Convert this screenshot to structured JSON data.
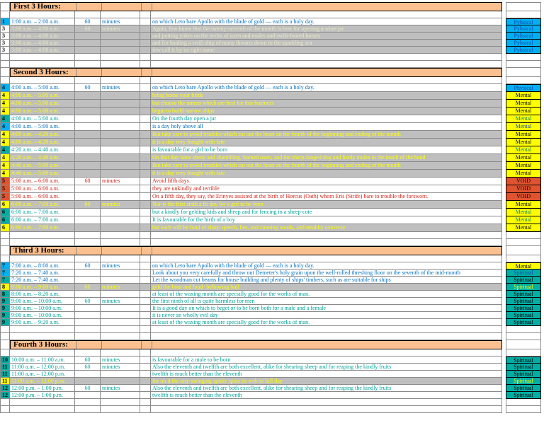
{
  "colors": {
    "section_header_band": "#FAC090",
    "grey_row": "#BFBFBF",
    "cyan_fill": "#00B0F0",
    "yellow_fill": "#FFFF00",
    "teal_fill": "#00AEA4",
    "void_red_fill": "#E0532F",
    "blue_text": "#0070C0",
    "teal_text": "#00A29A",
    "red_text": "#D02418",
    "yellow_text": "#FFFF00",
    "pale_text": "#E9E9C4"
  },
  "sections": [
    {
      "title": "First 3 Hours:",
      "rows": [
        {
          "num": "1",
          "num_bg": "cyan",
          "time": "1:00 a.m. – 2:00 a.m.",
          "dur": "60",
          "unit": "minutes",
          "text": "on which Leto bare Apollo with the blade of gold — each is a holy day.",
          "fg": "blue",
          "bg": "white",
          "label": "Pyhsical",
          "label_bg": "cyan",
          "label_fg": "blue"
        },
        {
          "num": "3",
          "num_bg": "none",
          "time": "3:00 a.m. – 4:00 a.m.",
          "dur": "60",
          "unit": "minutes",
          "text": "Again, few know that the twenty-seventh of the month is best for opening a wine-jar",
          "fg": "pale",
          "bg": "grey",
          "label": "Pyhsical",
          "label_bg": "cyan",
          "label_fg": "blue"
        },
        {
          "num": "3",
          "num_bg": "none",
          "time": "3:00 a.m. – 4:00 a.m.",
          "text": "and putting yokes on the necks of oxen and mules and swift-footed horses",
          "fg": "pale",
          "bg": "grey",
          "label": "Pyhsical",
          "label_bg": "cyan",
          "label_fg": "blue"
        },
        {
          "num": "3",
          "num_bg": "none",
          "time": "3:00 a.m. – 4:00 a.m.",
          "text": "and for hauling a swift ship of many thwarts down to the sparkling sea",
          "fg": "pale",
          "bg": "grey",
          "label": "Pyhsical",
          "label_bg": "cyan",
          "label_fg": "blue"
        },
        {
          "num": "3",
          "num_bg": "none",
          "time": "3:00 a.m. – 4:00 a.m.",
          "text": "few call it by its right name",
          "fg": "pale",
          "bg": "grey",
          "label": "Pyhsical",
          "label_bg": "cyan",
          "label_fg": "blue"
        }
      ]
    },
    {
      "title": "Second 3 Hours:",
      "rows": [
        {
          "num": "4",
          "num_bg": "cyan",
          "time": "4:00 a.m. – 5:00 a.m.",
          "dur": "60",
          "unit": "minutes",
          "text": "on which Leto bare Apollo with the blade of gold — each is a holy day.",
          "fg": "blue",
          "bg": "white",
          "label": "Physical",
          "label_bg": "cyan",
          "label_fg": "blue"
        },
        {
          "num": "4",
          "num_bg": "yellow",
          "time": "4:00 a.m. – 5:00 a.m.",
          "text": "bring home your bride",
          "fg": "yellow",
          "bg": "grey",
          "label": "Mental",
          "label_bg": "yellow",
          "label_fg": "black"
        },
        {
          "num": "4",
          "num_bg": "yellow",
          "time": "4:00 a.m. – 5:00 a.m.",
          "text": "but choose the omens which are best for this business",
          "fg": "yellow",
          "bg": "grey",
          "label": "Mental",
          "label_bg": "yellow",
          "label_fg": "black"
        },
        {
          "num": "4",
          "num_bg": "yellow",
          "time": "4:00 a.m. – 5:00 a.m.",
          "text": "begin to build narrow ships",
          "fg": "yellow",
          "bg": "grey",
          "label": "Mental",
          "label_bg": "yellow",
          "label_fg": "black"
        },
        {
          "num": "4",
          "num_bg": "teal",
          "time": "4:00 a.m. – 5:00 a.m.",
          "text": "On the fourth day open a jar",
          "fg": "teal",
          "bg": "white",
          "label": "Mental",
          "label_bg": "yellow",
          "label_fg": "teal"
        },
        {
          "num": "4",
          "num_bg": "cyan",
          "time": "4:00 a.m. – 5:00 a.m.",
          "text": "is a day holy above all",
          "fg": "blue",
          "bg": "white",
          "label": "Mental",
          "label_bg": "yellow",
          "label_fg": "blue"
        },
        {
          "num": "4",
          "num_bg": "yellow",
          "time": "4:00 a.m. – 4:20 a.m.",
          "text": "But take care to avoid troubles which eat out the heart on the fourth of the beginning and ending of the month",
          "fg": "yellow",
          "bg": "grey",
          "label": "Mental",
          "label_bg": "yellow",
          "label_fg": "black"
        },
        {
          "num": "4",
          "num_bg": "yellow",
          "time": "4:00 a.m. – 4:20 a.m.",
          "text": "it is a day very fraught with fate",
          "fg": "yellow",
          "bg": "grey",
          "label": "Mental",
          "label_bg": "yellow",
          "label_fg": "black"
        },
        {
          "num": "4",
          "num_bg": "teal",
          "time": "4:20 a.m. – 4:40 a.m.",
          "text": "is favourable for a girl to be born",
          "fg": "teal",
          "bg": "white",
          "label": "Mental",
          "label_bg": "yellow",
          "label_fg": "teal"
        },
        {
          "num": "4",
          "num_bg": "yellow",
          "time": "4:20 a.m. – 4:40 a.m.",
          "text": "On that day tame sheep and shambling, horned oxen, and the sharp-fanged dog and hardy mules to the touch of the hand",
          "fg": "yellow",
          "bg": "grey",
          "label": "Mental",
          "label_bg": "yellow",
          "label_fg": "black"
        },
        {
          "num": "4",
          "num_bg": "yellow",
          "time": "4:40 a.m. – 5:00 a.m.",
          "text": "But take care to avoid troubles which eat out the heart on the fourth of the beginning and ending of the month",
          "fg": "yellow",
          "bg": "grey",
          "label": "Mental",
          "label_bg": "yellow",
          "label_fg": "black"
        },
        {
          "num": "4",
          "num_bg": "yellow",
          "time": "4:40 a.m. – 5:00 a.m.",
          "text": "it is a day very fraught with fate",
          "fg": "yellow",
          "bg": "grey",
          "label": "Mental",
          "label_bg": "yellow",
          "label_fg": "black"
        },
        {
          "num": "5",
          "num_bg": "red",
          "time": "5:00 a.m. – 6:00 a.m.",
          "dur": "60",
          "unit": "minutes",
          "text": "Avoid fifth days",
          "fg": "red",
          "bg": "white",
          "label": "VOID",
          "label_bg": "red",
          "label_fg": "black"
        },
        {
          "num": "5",
          "num_bg": "red",
          "time": "5:00 a.m. – 6:00 a.m.",
          "text": "they are unkindly and terrible",
          "fg": "red",
          "bg": "white",
          "label": "VOID",
          "label_bg": "red",
          "label_fg": "black"
        },
        {
          "num": "5",
          "num_bg": "red",
          "time": "5:00 a.m. – 6:00 a.m.",
          "text": "On a fifth day, they say, the Erinyes assisted at the birth of Horcus (Oath) whom Eris (Strife) bare to trouble the forsworn.",
          "fg": "red",
          "bg": "white",
          "label": "VOID",
          "label_bg": "red",
          "label_fg": "black"
        },
        {
          "num": "6",
          "num_bg": "yellow",
          "time": "6:00 a.m. – 7:00 a.m.",
          "dur": "60",
          "unit": "minutes",
          "text": "Nor is the first sixth a fit day for a girl to be born",
          "fg": "yellow",
          "bg": "grey",
          "label": "Mental",
          "label_bg": "yellow",
          "label_fg": "black"
        },
        {
          "num": "6",
          "num_bg": "teal",
          "time": "6:00 a.m. – 7:00 a.m.",
          "text": "but a kindly for gelding kids and sheep and for fencing in a sheep-cote",
          "fg": "teal",
          "bg": "white",
          "label": "Mental",
          "label_bg": "yellow",
          "label_fg": "teal"
        },
        {
          "num": "6",
          "num_bg": "teal",
          "time": "6:00 a.m. – 7:00 a.m.",
          "text": "It is favourable for the birth of a boy",
          "fg": "teal",
          "bg": "white",
          "label": "Mental",
          "label_bg": "yellow",
          "label_fg": "teal"
        },
        {
          "num": "6",
          "num_bg": "yellow",
          "time": "6:00 a.m. – 7:00 a.m.",
          "text": "but such will be fond of sharp speech, lies, and cunning words, and stealthy converse",
          "fg": "yellow",
          "bg": "grey",
          "label": "Mental",
          "label_bg": "yellow",
          "label_fg": "black"
        }
      ]
    },
    {
      "title": "Third 3 Hours:",
      "rows": [
        {
          "num": "7",
          "num_bg": "cyan",
          "time": "7:00 a.m. – 8:00 a.m.",
          "dur": "60",
          "unit": "minutes",
          "text": "on which Leto bare Apollo with the blade of gold — each is a holy day.",
          "fg": "blue",
          "bg": "white",
          "label": "Mental",
          "label_bg": "yellow",
          "label_fg": "black"
        },
        {
          "num": "7",
          "num_bg": "cyan",
          "time": "7:20 a.m. – 7:40 a.m.",
          "text": "Look about you very carefully and throw out Demeter's holy grain upon the well-rolled threshing floor on the seventh of the mid-month",
          "fg": "blue",
          "bg": "white",
          "label": "Spiritual",
          "label_bg": "teal",
          "label_fg": "blue"
        },
        {
          "num": "7",
          "num_bg": "teal",
          "time": "7:20 a.m. – 7:40 a.m.",
          "text": "Let the woodman cut beams for house building and plenty of ships' timbers, such as are suitable for ships",
          "fg": "blue",
          "bg": "white",
          "label": "Spiritual",
          "label_bg": "teal",
          "label_fg": "black"
        },
        {
          "num": "8",
          "num_bg": "yellow",
          "time": "8:00 a.m. – 9:00 a.m.",
          "dur": "60",
          "unit": "minutes",
          "text": "geld the boar and loud- bellowing bull",
          "fg": "yellow",
          "bg": "grey",
          "label": "Spiritual",
          "label_bg": "teal",
          "label_fg": "yellow"
        },
        {
          "num": "8",
          "num_bg": "teal",
          "time": "8:00 a.m. – 8:20 a.m.",
          "text": "at least of the waxing month are specially good for the works of man.",
          "fg": "teal",
          "bg": "white",
          "label": "Spiritual",
          "label_bg": "teal",
          "label_fg": "black"
        },
        {
          "num": "9",
          "num_bg": "teal",
          "time": "9:00 a.m. – 10:00 a.m.",
          "dur": "60",
          "unit": "minutes",
          "text": "the first ninth of all is quite harmless for men",
          "fg": "teal",
          "bg": "white",
          "label": "Spiritual",
          "label_bg": "teal",
          "label_fg": "black"
        },
        {
          "num": "9",
          "num_bg": "teal",
          "time": "9:00 a.m. – 10:00 a.m.",
          "text": "It is a good day on which to beget or to be born both for a male and a female",
          "fg": "teal",
          "bg": "white",
          "label": "Spiritual",
          "label_bg": "teal",
          "label_fg": "black"
        },
        {
          "num": "9",
          "num_bg": "teal",
          "time": "9:00 a.m. – 10:00 a.m.",
          "text": "it is never an wholly evil day",
          "fg": "teal",
          "bg": "white",
          "label": "Spiritual",
          "label_bg": "teal",
          "label_fg": "black"
        },
        {
          "num": "9",
          "num_bg": "teal",
          "time": "9:00 a.m. – 9:20 a.m.",
          "text": "at least of the waxing month are specially good for the works of man.",
          "fg": "teal",
          "bg": "white",
          "label": "Spiritual",
          "label_bg": "teal",
          "label_fg": "black"
        }
      ]
    },
    {
      "title": "Fourth 3 Hours:",
      "rows": [
        {
          "num": "10",
          "num_bg": "teal",
          "time": "10:00 a.m. – 11:00 a.m.",
          "dur": "60",
          "unit": "minutes",
          "text": "is favourable for a male to be born",
          "fg": "teal",
          "bg": "white",
          "label": "Spiritual",
          "label_bg": "teal",
          "label_fg": "black"
        },
        {
          "num": "11",
          "num_bg": "teal",
          "time": "11:00 a.m. – 12:00 p.m.",
          "dur": "60",
          "unit": "minutes",
          "text": "Also the eleventh and twelfth are both excellent, alike for shearing sheep and for reaping the kindly fruits",
          "fg": "teal",
          "bg": "white",
          "label": "Spiritual",
          "label_bg": "teal",
          "label_fg": "black"
        },
        {
          "num": "11",
          "num_bg": "teal",
          "time": "11:00 a.m. – 12:00 p.m.",
          "text": "twelfth is much better than the eleventh",
          "fg": "teal",
          "bg": "white",
          "label": "Spiritual",
          "label_bg": "teal",
          "label_fg": "black"
        },
        {
          "num": "11",
          "num_bg": "yellow",
          "time": "11:00 a.m. – 12:00 p.m.",
          "text": "for on it the airy-swinging spider spins its web in full day",
          "fg": "yellow",
          "bg": "grey",
          "label": "Spiritual",
          "label_bg": "teal",
          "label_fg": "yellow"
        },
        {
          "num": "12",
          "num_bg": "teal",
          "time": "12:00 p.m. – 1:00 p.m.",
          "dur": "60",
          "unit": "minutes",
          "text": "Also the eleventh and twelfth are both excellent, alike for shearing sheep and for reaping the kindly fruits",
          "fg": "teal",
          "bg": "white",
          "label": "Spiritual",
          "label_bg": "teal",
          "label_fg": "black"
        },
        {
          "num": "12",
          "num_bg": "teal",
          "time": "12:00 p.m. – 1:00 p.m.",
          "text": "twelfth is much better than the eleventh",
          "fg": "teal",
          "bg": "white",
          "label": "Spiritual",
          "label_bg": "teal",
          "label_fg": "black"
        }
      ]
    }
  ]
}
